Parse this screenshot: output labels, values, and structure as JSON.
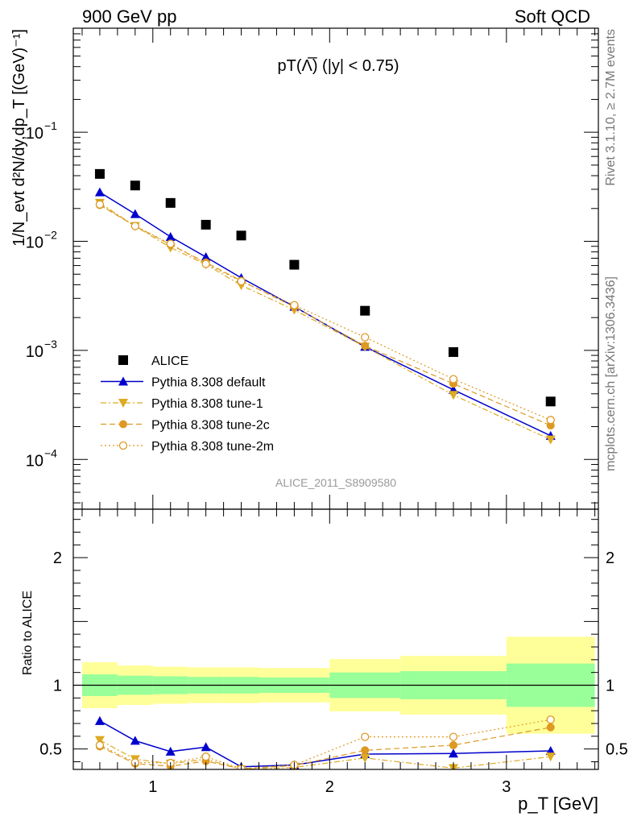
{
  "header": {
    "left": "900 GeV pp",
    "right": "Soft QCD"
  },
  "side_labels": {
    "rivet": "Rivet 3.1.10, ≥ 2.7M events",
    "mcplots": "mcplots.cern.ch [arXiv:1306.3436]"
  },
  "chart_data": [
    {
      "type": "scatter",
      "panel": "main",
      "title": "pT(Λ̅) (|y| < 0.75)",
      "ylabel": "1/N_evt d²N/dy,dp_T [(GeV)⁻¹]",
      "yscale": "log",
      "ylim": [
        3.5e-05,
        0.9
      ],
      "xlim": [
        0.55,
        3.52
      ],
      "analysis_id": "ALICE_2011_S8909580",
      "y_ticks": [
        {
          "value": 0.0001,
          "base": "10",
          "exp": "−4"
        },
        {
          "value": 0.001,
          "base": "10",
          "exp": "−3"
        },
        {
          "value": 0.01,
          "base": "10",
          "exp": "−2"
        },
        {
          "value": 0.1,
          "base": "10",
          "exp": "−1"
        }
      ],
      "series": [
        {
          "name": "ALICE",
          "color": "#000000",
          "marker": "square",
          "line": "none",
          "x": [
            0.7,
            0.9,
            1.1,
            1.3,
            1.5,
            1.8,
            2.2,
            2.7,
            3.25
          ],
          "y": [
            0.0415,
            0.0325,
            0.0225,
            0.0142,
            0.0113,
            0.0061,
            0.00231,
            0.000965,
            0.00034
          ]
        },
        {
          "name": "Pythia 8.308 default",
          "color": "#0000cc",
          "marker": "triangle-up",
          "line": "solid",
          "x": [
            0.7,
            0.9,
            1.1,
            1.3,
            1.5,
            1.8,
            2.2,
            2.7,
            3.25
          ],
          "y": [
            0.0282,
            0.0178,
            0.011,
            0.00718,
            0.00462,
            0.00252,
            0.00108,
            0.000435,
            0.000165
          ]
        },
        {
          "name": "Pythia 8.308 tune-1",
          "color": "#ddaa22",
          "marker": "triangle-down",
          "line": "dashdot",
          "x": [
            0.7,
            0.9,
            1.1,
            1.3,
            1.5,
            1.8,
            2.2,
            2.7,
            3.25
          ],
          "y": [
            0.0225,
            0.0138,
            0.00875,
            0.00615,
            0.00395,
            0.00235,
            0.00108,
            0.00039,
            0.000152
          ]
        },
        {
          "name": "Pythia 8.308 tune-2c",
          "color": "#dd9922",
          "marker": "circle",
          "line": "dashed",
          "x": [
            0.7,
            0.9,
            1.1,
            1.3,
            1.5,
            1.8,
            2.2,
            2.7,
            3.25
          ],
          "y": [
            0.0215,
            0.0138,
            0.0093,
            0.0064,
            0.00435,
            0.0025,
            0.0011,
            0.000495,
            0.000205
          ]
        },
        {
          "name": "Pythia 8.308 tune-2m",
          "color": "#dd9922",
          "marker": "open-circle",
          "line": "dotted",
          "x": [
            0.7,
            0.9,
            1.1,
            1.3,
            1.5,
            1.8,
            2.2,
            2.7,
            3.25
          ],
          "y": [
            0.0218,
            0.0138,
            0.0095,
            0.0062,
            0.0043,
            0.0026,
            0.00132,
            0.000545,
            0.00023
          ]
        }
      ]
    },
    {
      "type": "scatter",
      "panel": "ratio",
      "ylabel": "Ratio to ALICE",
      "ylim": [
        0.34,
        2.38
      ],
      "xlim": [
        0.55,
        3.52
      ],
      "xlabel": "p_T [GeV]",
      "x_ticks": [
        "1",
        "2",
        "3"
      ],
      "y_ticks": [
        "0.5",
        "1",
        "2"
      ],
      "reference_line": 1,
      "bands": {
        "bin_edges": [
          0.6,
          0.8,
          1.0,
          1.2,
          1.4,
          1.6,
          2.0,
          2.4,
          3.0,
          3.5
        ],
        "inner_color": "#99ff99",
        "outer_color": "#ffff99",
        "inner_low": [
          0.915,
          0.925,
          0.93,
          0.935,
          0.935,
          0.94,
          0.9,
          0.89,
          0.83
        ],
        "inner_high": [
          1.085,
          1.075,
          1.07,
          1.065,
          1.065,
          1.06,
          1.1,
          1.11,
          1.17
        ],
        "outer_low": [
          0.82,
          0.845,
          0.855,
          0.86,
          0.86,
          0.865,
          0.795,
          0.77,
          0.62
        ],
        "outer_high": [
          1.18,
          1.155,
          1.145,
          1.14,
          1.14,
          1.135,
          1.205,
          1.23,
          1.38
        ]
      },
      "series": [
        {
          "name": "Pythia 8.308 default",
          "color": "#0000cc",
          "marker": "triangle-up",
          "line": "solid",
          "x": [
            0.7,
            0.9,
            1.1,
            1.3,
            1.5,
            1.8,
            2.2,
            2.7,
            3.25
          ],
          "y": [
            0.72,
            0.565,
            0.48,
            0.515,
            0.36,
            0.375,
            0.46,
            0.465,
            0.485
          ]
        },
        {
          "name": "Pythia 8.308 tune-1",
          "color": "#ddaa22",
          "marker": "triangle-down",
          "line": "dashdot",
          "x": [
            0.7,
            0.9,
            1.1,
            1.3,
            1.5,
            1.8,
            2.2,
            2.7,
            3.25
          ],
          "y": [
            0.57,
            0.42,
            0.385,
            0.42,
            0.34,
            0.355,
            0.43,
            0.35,
            0.44
          ]
        },
        {
          "name": "Pythia 8.308 tune-2c",
          "color": "#dd9922",
          "marker": "circle",
          "line": "dashed",
          "x": [
            0.7,
            0.9,
            1.1,
            1.3,
            1.5,
            1.8,
            2.2,
            2.7,
            3.25
          ],
          "y": [
            0.52,
            0.385,
            0.365,
            0.405,
            0.345,
            0.37,
            0.49,
            0.53,
            0.67
          ]
        },
        {
          "name": "Pythia 8.308 tune-2m",
          "color": "#dd9922",
          "marker": "open-circle",
          "line": "dotted",
          "x": [
            0.7,
            0.9,
            1.1,
            1.3,
            1.5,
            1.8,
            2.2,
            2.7,
            3.25
          ],
          "y": [
            0.53,
            0.395,
            0.39,
            0.44,
            0.345,
            0.375,
            0.595,
            0.595,
            0.73
          ]
        }
      ]
    }
  ]
}
